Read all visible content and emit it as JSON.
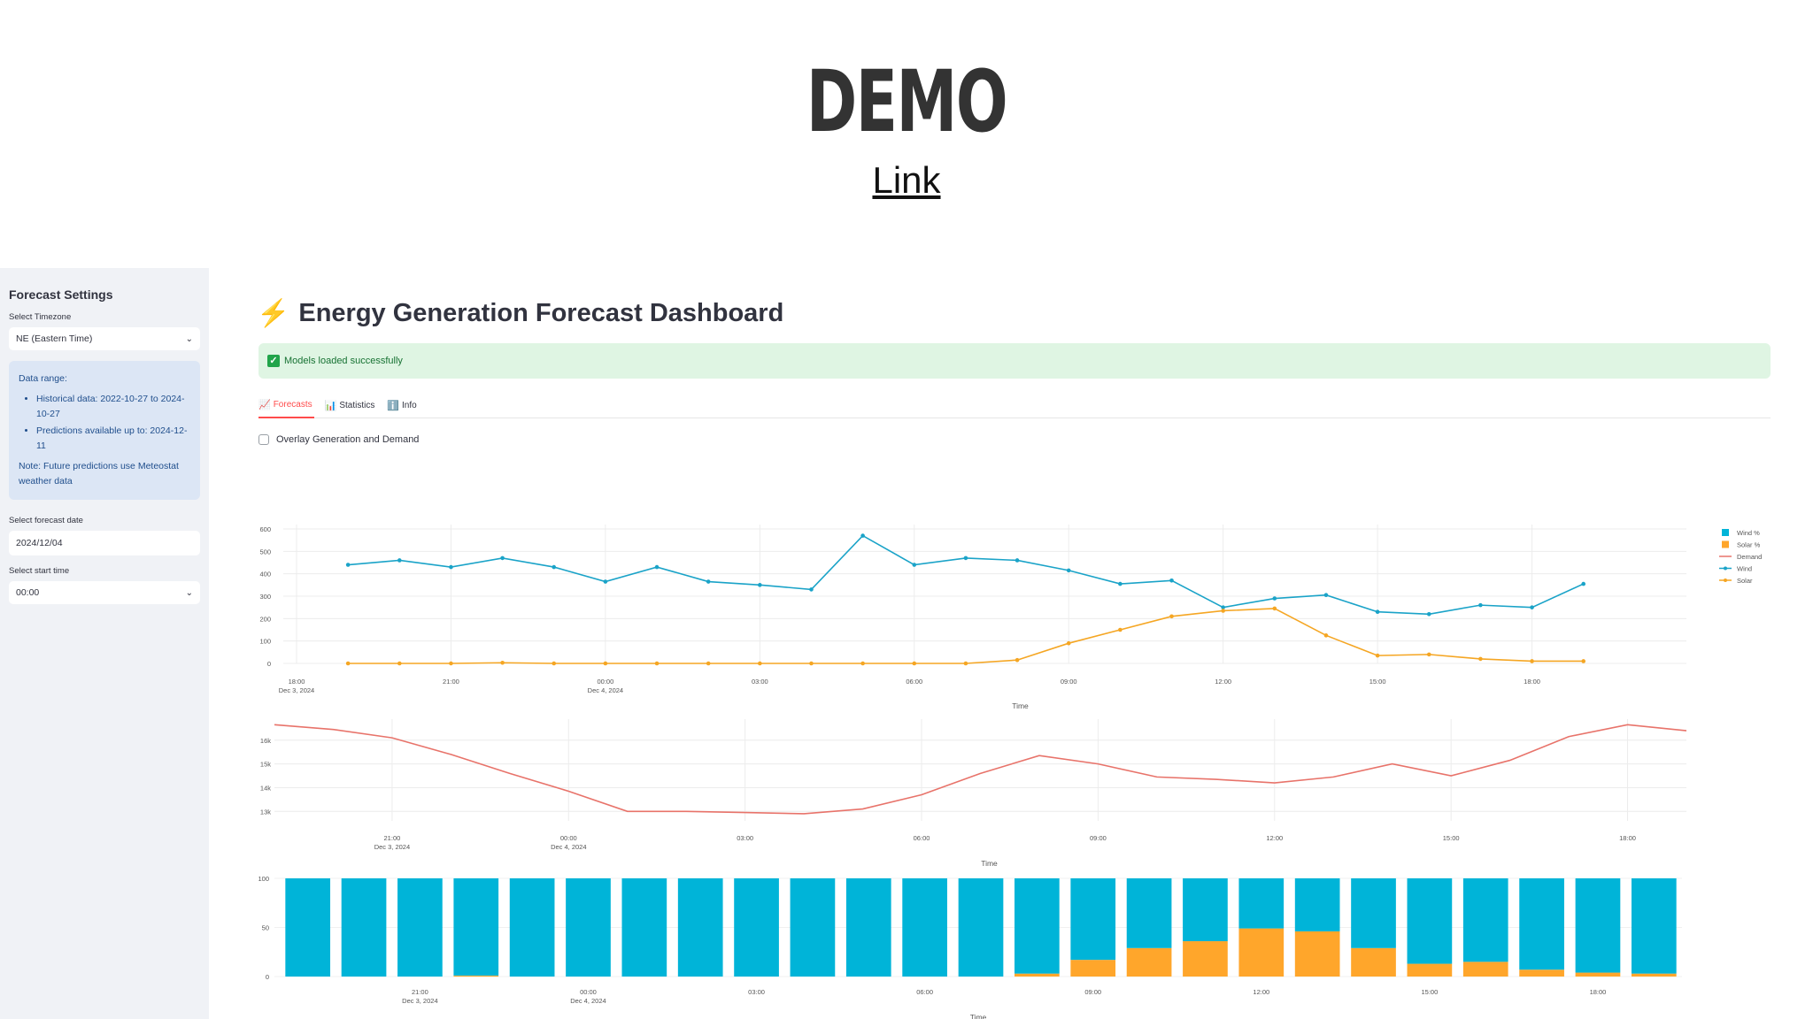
{
  "slide": {
    "title": "DEMO",
    "link": "Link"
  },
  "sidebar": {
    "title": "Forecast Settings",
    "timezone_label": "Select Timezone",
    "timezone_value": "NE (Eastern Time)",
    "info": {
      "heading": "Data range:",
      "items": [
        "Historical data: 2022-10-27 to 2024-10-27",
        "Predictions available up to: 2024-12-11"
      ],
      "note": "Note: Future predictions use Meteostat weather data"
    },
    "date_label": "Select forecast date",
    "date_value": "2024/12/04",
    "time_label": "Select start time",
    "time_value": "00:00"
  },
  "main": {
    "title": "Energy Generation Forecast Dashboard",
    "success": "Models loaded successfully",
    "tabs": [
      {
        "icon": "📈",
        "label": "Forecasts"
      },
      {
        "icon": "📊",
        "label": "Statistics"
      },
      {
        "icon": "ℹ️",
        "label": "Info"
      }
    ],
    "overlay_label": "Overlay Generation and Demand"
  },
  "colors": {
    "wind": "#1aa3c8",
    "solar": "#f5a623",
    "demand": "#e8736a",
    "bar_wind": "#00b4d8",
    "bar_solar": "#ffa62b"
  },
  "chart_data": [
    {
      "type": "line",
      "title": "",
      "xlabel": "Time",
      "ylabel": "",
      "ylim": [
        0,
        600
      ],
      "yticks": [
        0,
        100,
        200,
        300,
        400,
        500,
        600
      ],
      "xticks": [
        "18:00\nDec 3, 2024",
        "21:00",
        "00:00\nDec 4, 2024",
        "03:00",
        "06:00",
        "09:00",
        "12:00",
        "15:00",
        "18:00"
      ],
      "x_start_hour": 18,
      "x_span_hours": 27,
      "legend": [
        "Wind %",
        "Solar %",
        "Demand",
        "Wind",
        "Solar"
      ],
      "series": [
        {
          "name": "Wind",
          "start_hour": 19,
          "values": [
            440,
            460,
            430,
            470,
            430,
            365,
            430,
            365,
            350,
            330,
            570,
            440,
            470,
            460,
            415,
            355,
            370,
            250,
            290,
            305,
            230,
            220,
            260,
            250,
            355
          ]
        },
        {
          "name": "Solar",
          "start_hour": 19,
          "values": [
            0,
            0,
            0,
            3,
            0,
            0,
            0,
            0,
            0,
            0,
            0,
            0,
            0,
            15,
            90,
            150,
            210,
            235,
            245,
            125,
            35,
            40,
            20,
            10,
            10
          ]
        }
      ]
    },
    {
      "type": "line",
      "xlabel": "Time",
      "ylim": [
        12600,
        16700
      ],
      "yticks": [
        "13k",
        "14k",
        "15k",
        "16k"
      ],
      "ytick_values": [
        13000,
        14000,
        15000,
        16000
      ],
      "xticks": [
        "21:00\nDec 3, 2024",
        "00:00\nDec 4, 2024",
        "03:00",
        "06:00",
        "09:00",
        "12:00",
        "15:00",
        "18:00"
      ],
      "x_start_hour": 19,
      "x_span_hours": 24,
      "series": [
        {
          "name": "Demand",
          "start_hour": 19,
          "values": [
            16650,
            16450,
            16100,
            15400,
            14600,
            13850,
            13000,
            13000,
            12950,
            12900,
            13100,
            13700,
            14600,
            15350,
            15000,
            14450,
            14350,
            14200,
            14450,
            15000,
            14500,
            15150,
            16150,
            16650,
            16400
          ]
        }
      ]
    },
    {
      "type": "bar",
      "stacked": true,
      "xlabel": "Time",
      "ylim": [
        0,
        100
      ],
      "yticks": [
        0,
        50,
        100
      ],
      "xticks": [
        "21:00\nDec 3, 2024",
        "00:00\nDec 4, 2024",
        "03:00",
        "06:00",
        "09:00",
        "12:00",
        "15:00",
        "18:00"
      ],
      "series": [
        {
          "name": "Solar %",
          "values": [
            0,
            0,
            0,
            1,
            0,
            0,
            0,
            0,
            0,
            0,
            0,
            0,
            0,
            3,
            17,
            29,
            36,
            49,
            46,
            29,
            13,
            15,
            7,
            4,
            3
          ]
        },
        {
          "name": "Wind %",
          "values": [
            100,
            100,
            100,
            99,
            100,
            100,
            100,
            100,
            100,
            100,
            100,
            100,
            100,
            97,
            83,
            71,
            64,
            51,
            54,
            71,
            87,
            85,
            93,
            96,
            97
          ]
        }
      ]
    }
  ]
}
